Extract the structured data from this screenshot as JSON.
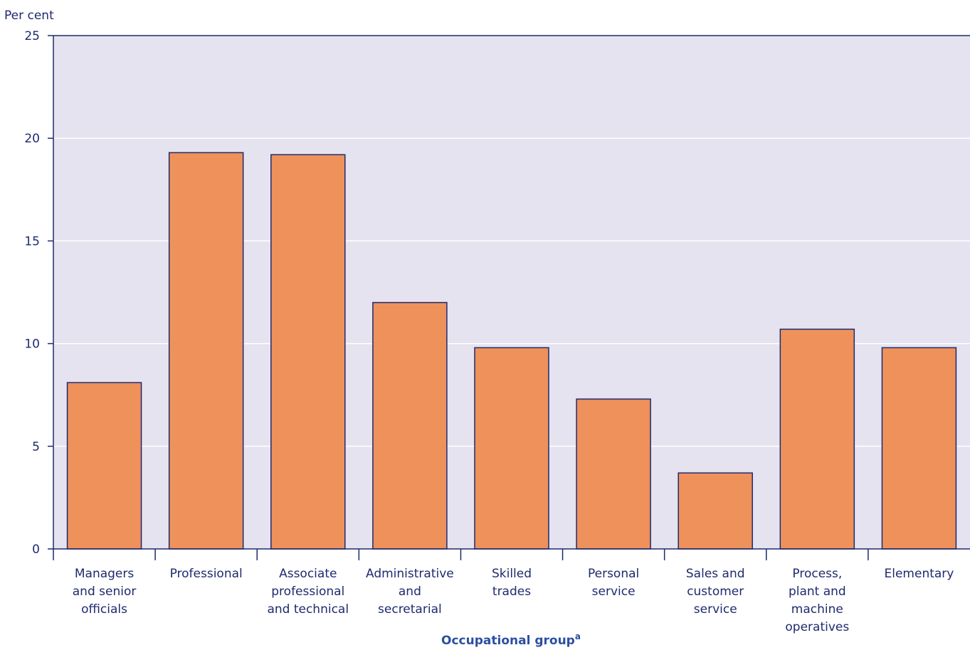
{
  "chart_data": {
    "type": "bar",
    "ylabel": "Per cent",
    "xlabel": "Occupational group",
    "xlabel_superscript": "a",
    "ylim": [
      0,
      25
    ],
    "yticks": [
      "0",
      "5",
      "10",
      "15",
      "20",
      "25"
    ],
    "categories": [
      "Managers and senior officials",
      "Professional",
      "Associate professional and technical",
      "Administrative and secretarial",
      "Skilled trades",
      "Personal service",
      "Sales and customer service",
      "Process, plant and machine operatives",
      "Elementary"
    ],
    "category_lines": [
      [
        "Managers",
        "and senior",
        "officials"
      ],
      [
        "Professional"
      ],
      [
        "Associate",
        "professional",
        "and technical"
      ],
      [
        "Administrative",
        "and",
        "secretarial"
      ],
      [
        "Skilled",
        "trades"
      ],
      [
        "Personal",
        "service"
      ],
      [
        "Sales and",
        "customer",
        "service"
      ],
      [
        "Process,",
        "plant and",
        "machine",
        "operatives"
      ],
      [
        "Elementary"
      ]
    ],
    "values": [
      8.1,
      19.3,
      19.2,
      12.0,
      9.8,
      7.3,
      3.7,
      10.7,
      9.8
    ],
    "grid": true,
    "colors": {
      "bar_fill": "#ee915b",
      "bar_stroke": "#1f2a6e",
      "plot_bg": "#e5e3ef",
      "grid": "#ffffff",
      "axis": "#1f2a6e"
    }
  }
}
